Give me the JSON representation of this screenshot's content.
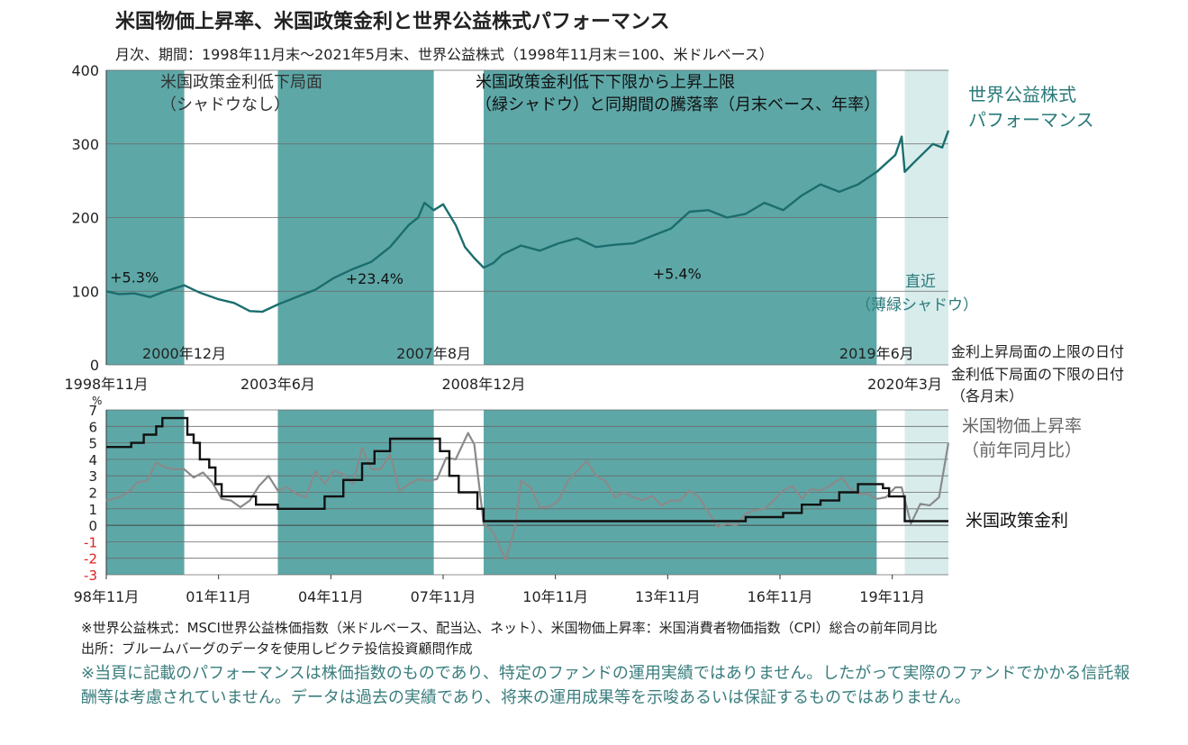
{
  "header": {
    "title": "米国物価上昇率、米国政策金利と世界公益株式パフォーマンス",
    "subtitle": "月次、期間：1998年11月末～2021年5月末、世界公益株式（1998年11月末＝100、米ドルベース）"
  },
  "colors": {
    "shade": "#5ea7a7",
    "light_shade": "#d8ecec",
    "equity": "#1b6e6e",
    "inflation": "#8a8a8a",
    "policy": "#111111",
    "negative_tick": "#e02020",
    "label_teal": "#2a7a7a"
  },
  "chart_data": [
    {
      "type": "line",
      "name": "top-panel",
      "ylim": [
        0,
        400
      ],
      "yticks": [
        "0",
        "100",
        "200",
        "300",
        "400"
      ],
      "series": [
        {
          "name": "世界公益株式パフォーマンス",
          "points": [
            [
              "1998-11",
              100
            ],
            [
              "1999-03",
              96
            ],
            [
              "1999-08",
              97
            ],
            [
              "2000-01",
              92
            ],
            [
              "2000-06",
              100
            ],
            [
              "2000-12",
              108
            ],
            [
              "2001-05",
              98
            ],
            [
              "2001-11",
              89
            ],
            [
              "2002-04",
              84
            ],
            [
              "2002-09",
              73
            ],
            [
              "2003-01",
              72
            ],
            [
              "2003-06",
              82
            ],
            [
              "2003-12",
              92
            ],
            [
              "2004-06",
              102
            ],
            [
              "2004-12",
              118
            ],
            [
              "2005-06",
              130
            ],
            [
              "2005-12",
              140
            ],
            [
              "2006-06",
              160
            ],
            [
              "2006-12",
              190
            ],
            [
              "2007-03",
              200
            ],
            [
              "2007-05",
              220
            ],
            [
              "2007-08",
              210
            ],
            [
              "2007-11",
              218
            ],
            [
              "2008-03",
              190
            ],
            [
              "2008-06",
              160
            ],
            [
              "2008-09",
              145
            ],
            [
              "2008-12",
              132
            ],
            [
              "2009-03",
              138
            ],
            [
              "2009-06",
              150
            ],
            [
              "2009-12",
              162
            ],
            [
              "2010-06",
              155
            ],
            [
              "2010-12",
              165
            ],
            [
              "2011-06",
              172
            ],
            [
              "2011-12",
              160
            ],
            [
              "2012-06",
              163
            ],
            [
              "2012-12",
              165
            ],
            [
              "2013-06",
              175
            ],
            [
              "2013-12",
              185
            ],
            [
              "2014-06",
              208
            ],
            [
              "2014-12",
              210
            ],
            [
              "2015-06",
              200
            ],
            [
              "2015-12",
              205
            ],
            [
              "2016-06",
              220
            ],
            [
              "2016-12",
              210
            ],
            [
              "2017-06",
              230
            ],
            [
              "2017-12",
              245
            ],
            [
              "2018-06",
              235
            ],
            [
              "2018-12",
              245
            ],
            [
              "2019-06",
              262
            ],
            [
              "2019-12",
              285
            ],
            [
              "2020-02",
              310
            ],
            [
              "2020-03",
              262
            ],
            [
              "2020-06",
              275
            ],
            [
              "2020-12",
              300
            ],
            [
              "2021-03",
              295
            ],
            [
              "2021-05",
              318
            ]
          ]
        }
      ],
      "shaded_periods": [
        {
          "start": "1998-11",
          "end": "2000-12",
          "kind": "green"
        },
        {
          "start": "2003-06",
          "end": "2007-08",
          "kind": "green"
        },
        {
          "start": "2008-12",
          "end": "2019-06",
          "kind": "green"
        },
        {
          "start": "2020-03",
          "end": "2021-05",
          "kind": "light"
        }
      ],
      "period_returns": [
        {
          "label": "+5.3%",
          "date": "1999-08",
          "y": 112
        },
        {
          "label": "+23.4%",
          "date": "2006-01",
          "y": 110
        },
        {
          "label": "+5.4%",
          "date": "2014-02",
          "y": 117
        }
      ],
      "boundary_labels": [
        {
          "text": "2000年12月",
          "date": "2000-12",
          "row": "inner"
        },
        {
          "text": "2007年8月",
          "date": "2007-08",
          "row": "inner"
        },
        {
          "text": "2019年6月",
          "date": "2019-06",
          "row": "inner"
        },
        {
          "text": "1998年11月",
          "date": "1998-11",
          "row": "outer"
        },
        {
          "text": "2003年6月",
          "date": "2003-06",
          "row": "outer"
        },
        {
          "text": "2008年12月",
          "date": "2008-12",
          "row": "outer"
        },
        {
          "text": "2020年3月",
          "date": "2020-03",
          "row": "outer"
        }
      ],
      "annotations": {
        "low_period_1": "米国政策金利低下局面",
        "low_period_2": "（シャドウなし）",
        "green_period_1": "米国政策金利低下下限から上昇上限",
        "green_period_2": "（緑シャドウ）と同期間の騰落率（月末ベース、年率）",
        "recent_1": "直近",
        "recent_2": "（薄緑シャドウ）",
        "series_label_1": "世界公益株式",
        "series_label_2": "パフォーマンス",
        "date_note_1": "金利上昇局面の上限の日付",
        "date_note_2": "金利低下局面の下限の日付",
        "date_note_3": "（各月末）"
      }
    },
    {
      "type": "line",
      "name": "bottom-panel",
      "unit": "%",
      "ylim": [
        -3,
        7
      ],
      "yticks": [
        "-3",
        "-2",
        "-1",
        "0",
        "1",
        "2",
        "3",
        "4",
        "5",
        "6",
        "7"
      ],
      "xticks": [
        "98年11月",
        "01年11月",
        "04年11月",
        "07年11月",
        "10年11月",
        "13年11月",
        "16年11月",
        "19年11月"
      ],
      "series": [
        {
          "name": "米国物価上昇率",
          "label_lines": [
            "米国物価上昇率",
            "（前年同月比）"
          ],
          "points": [
            [
              "1998-11",
              1.5
            ],
            [
              "1999-03",
              1.7
            ],
            [
              "1999-06",
              2.0
            ],
            [
              "1999-09",
              2.6
            ],
            [
              "1999-12",
              2.7
            ],
            [
              "2000-03",
              3.8
            ],
            [
              "2000-06",
              3.5
            ],
            [
              "2000-09",
              3.4
            ],
            [
              "2000-12",
              3.4
            ],
            [
              "2001-03",
              2.9
            ],
            [
              "2001-06",
              3.2
            ],
            [
              "2001-09",
              2.6
            ],
            [
              "2001-12",
              1.6
            ],
            [
              "2002-03",
              1.5
            ],
            [
              "2002-06",
              1.1
            ],
            [
              "2002-09",
              1.5
            ],
            [
              "2002-12",
              2.4
            ],
            [
              "2003-03",
              3.0
            ],
            [
              "2003-06",
              2.1
            ],
            [
              "2003-09",
              2.3
            ],
            [
              "2003-12",
              1.9
            ],
            [
              "2004-03",
              1.7
            ],
            [
              "2004-06",
              3.3
            ],
            [
              "2004-09",
              2.5
            ],
            [
              "2004-12",
              3.3
            ],
            [
              "2005-03",
              3.1
            ],
            [
              "2005-06",
              2.5
            ],
            [
              "2005-09",
              4.7
            ],
            [
              "2005-12",
              3.4
            ],
            [
              "2006-03",
              3.4
            ],
            [
              "2006-06",
              4.3
            ],
            [
              "2006-09",
              2.1
            ],
            [
              "2006-12",
              2.5
            ],
            [
              "2007-03",
              2.8
            ],
            [
              "2007-06",
              2.7
            ],
            [
              "2007-09",
              2.8
            ],
            [
              "2007-12",
              4.1
            ],
            [
              "2008-03",
              4.0
            ],
            [
              "2008-07",
              5.6
            ],
            [
              "2008-09",
              4.9
            ],
            [
              "2008-12",
              0.1
            ],
            [
              "2009-03",
              -0.4
            ],
            [
              "2009-07",
              -2.1
            ],
            [
              "2009-10",
              -0.2
            ],
            [
              "2009-12",
              2.7
            ],
            [
              "2010-03",
              2.3
            ],
            [
              "2010-06",
              1.1
            ],
            [
              "2010-09",
              1.1
            ],
            [
              "2010-12",
              1.5
            ],
            [
              "2011-03",
              2.7
            ],
            [
              "2011-09",
              3.9
            ],
            [
              "2011-12",
              3.0
            ],
            [
              "2012-03",
              2.7
            ],
            [
              "2012-06",
              1.7
            ],
            [
              "2012-09",
              2.0
            ],
            [
              "2012-12",
              1.7
            ],
            [
              "2013-03",
              1.5
            ],
            [
              "2013-06",
              1.8
            ],
            [
              "2013-09",
              1.2
            ],
            [
              "2013-12",
              1.5
            ],
            [
              "2014-03",
              1.5
            ],
            [
              "2014-06",
              2.1
            ],
            [
              "2014-09",
              1.7
            ],
            [
              "2014-12",
              0.8
            ],
            [
              "2015-03",
              -0.1
            ],
            [
              "2015-06",
              0.1
            ],
            [
              "2015-09",
              0.0
            ],
            [
              "2015-12",
              0.7
            ],
            [
              "2016-03",
              0.9
            ],
            [
              "2016-06",
              1.0
            ],
            [
              "2016-09",
              1.5
            ],
            [
              "2016-12",
              2.1
            ],
            [
              "2017-03",
              2.4
            ],
            [
              "2017-06",
              1.6
            ],
            [
              "2017-09",
              2.2
            ],
            [
              "2017-12",
              2.1
            ],
            [
              "2018-03",
              2.4
            ],
            [
              "2018-07",
              2.9
            ],
            [
              "2018-09",
              2.3
            ],
            [
              "2018-12",
              1.9
            ],
            [
              "2019-03",
              1.9
            ],
            [
              "2019-06",
              1.6
            ],
            [
              "2019-09",
              1.7
            ],
            [
              "2019-12",
              2.3
            ],
            [
              "2020-02",
              2.3
            ],
            [
              "2020-05",
              0.1
            ],
            [
              "2020-08",
              1.3
            ],
            [
              "2020-11",
              1.2
            ],
            [
              "2021-02",
              1.7
            ],
            [
              "2021-05",
              5.0
            ]
          ]
        },
        {
          "name": "米国政策金利",
          "label_lines": [
            "米国政策金利"
          ],
          "points": [
            [
              "1998-11",
              4.75
            ],
            [
              "1999-06",
              4.75
            ],
            [
              "1999-07",
              5.0
            ],
            [
              "1999-11",
              5.5
            ],
            [
              "2000-03",
              6.0
            ],
            [
              "2000-05",
              6.5
            ],
            [
              "2000-12",
              6.5
            ],
            [
              "2001-01",
              5.5
            ],
            [
              "2001-03",
              5.0
            ],
            [
              "2001-05",
              4.0
            ],
            [
              "2001-08",
              3.5
            ],
            [
              "2001-10",
              2.5
            ],
            [
              "2001-12",
              1.75
            ],
            [
              "2002-11",
              1.25
            ],
            [
              "2003-06",
              1.0
            ],
            [
              "2004-06",
              1.0
            ],
            [
              "2004-09",
              1.75
            ],
            [
              "2005-03",
              2.75
            ],
            [
              "2005-09",
              3.75
            ],
            [
              "2006-01",
              4.5
            ],
            [
              "2006-06",
              5.25
            ],
            [
              "2007-08",
              5.25
            ],
            [
              "2007-10",
              4.5
            ],
            [
              "2008-01",
              3.0
            ],
            [
              "2008-04",
              2.0
            ],
            [
              "2008-10",
              1.0
            ],
            [
              "2008-12",
              0.25
            ],
            [
              "2015-12",
              0.5
            ],
            [
              "2016-12",
              0.75
            ],
            [
              "2017-06",
              1.25
            ],
            [
              "2017-12",
              1.5
            ],
            [
              "2018-06",
              2.0
            ],
            [
              "2018-12",
              2.5
            ],
            [
              "2019-06",
              2.5
            ],
            [
              "2019-08",
              2.25
            ],
            [
              "2019-10",
              1.75
            ],
            [
              "2020-02",
              1.75
            ],
            [
              "2020-03",
              0.25
            ],
            [
              "2021-05",
              0.25
            ]
          ]
        }
      ],
      "shaded_periods": [
        {
          "start": "1998-11",
          "end": "2000-12",
          "kind": "green"
        },
        {
          "start": "2003-06",
          "end": "2007-08",
          "kind": "green"
        },
        {
          "start": "2008-12",
          "end": "2019-06",
          "kind": "green"
        },
        {
          "start": "2020-03",
          "end": "2021-05",
          "kind": "light"
        }
      ]
    }
  ],
  "footer": {
    "note1": "※世界公益株式：MSCI世界公益株価指数（米ドルベース、配当込、ネット）、米国物価上昇率：米国消費者物価指数（CPI）総合の前年同月比",
    "note2": "出所：ブルームバーグのデータを使用しピクテ投信投資顧問作成",
    "disclaimer": "※当頁に記載のパフォーマンスは株価指数のものであり、特定のファンドの運用実績ではありません。したがって実際のファンドでかかる信託報酬等は考慮されていません。データは過去の実績であり、将来の運用成果等を示唆あるいは保証するものではありません。"
  }
}
